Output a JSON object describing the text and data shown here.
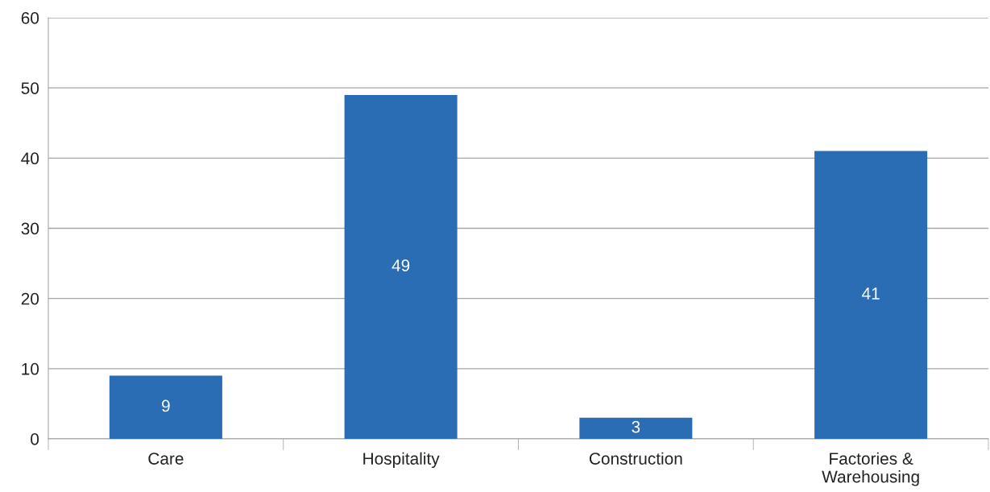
{
  "chart_data": {
    "type": "bar",
    "categories": [
      "Care",
      "Hospitality",
      "Construction",
      "Factories &\nWarehousing"
    ],
    "values": [
      9,
      49,
      3,
      41
    ],
    "color": "#2a6db5",
    "ylim": [
      0,
      60
    ],
    "yticks": [
      0,
      10,
      20,
      30,
      40,
      50,
      60
    ],
    "grid": "y",
    "data_labels": true,
    "legend": false
  }
}
